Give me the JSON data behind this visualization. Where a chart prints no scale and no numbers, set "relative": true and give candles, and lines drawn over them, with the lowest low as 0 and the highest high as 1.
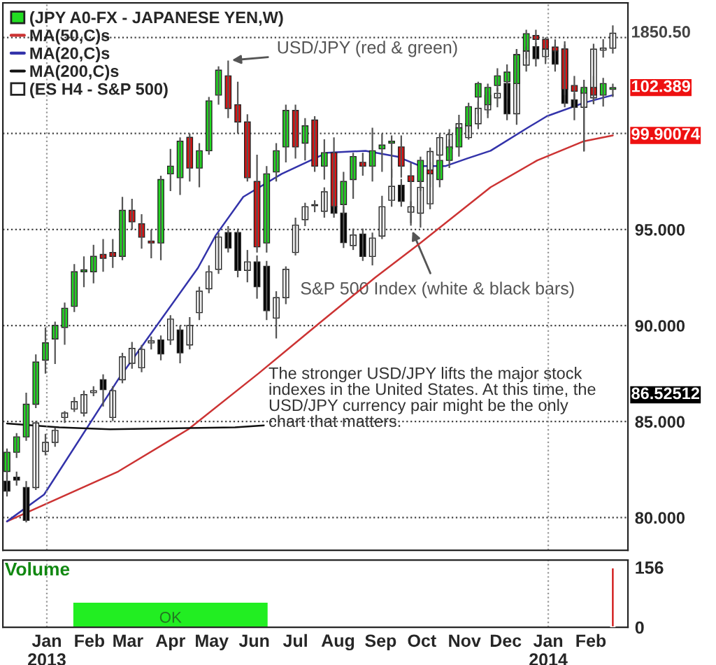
{
  "chart_data": [
    {
      "type": "candlestick",
      "legend": "top left",
      "grid": "y",
      "tick_labels": "y",
      "x": [
        "2012-12-03",
        "2012-12-10",
        "2012-12-17",
        "2012-12-24",
        "2012-12-31",
        "2013-01-07",
        "2013-01-14",
        "2013-01-21",
        "2013-01-28",
        "2013-02-04",
        "2013-02-11",
        "2013-02-18",
        "2013-02-25",
        "2013-03-04",
        "2013-03-11",
        "2013-03-18",
        "2013-03-25",
        "2013-04-01",
        "2013-04-08",
        "2013-04-15",
        "2013-04-22",
        "2013-04-29",
        "2013-05-06",
        "2013-05-13",
        "2013-05-20",
        "2013-05-27",
        "2013-06-03",
        "2013-06-10",
        "2013-06-17",
        "2013-06-24",
        "2013-07-01",
        "2013-07-08",
        "2013-07-15",
        "2013-07-22",
        "2013-07-29",
        "2013-08-05",
        "2013-08-12",
        "2013-08-19",
        "2013-08-26",
        "2013-09-02",
        "2013-09-09",
        "2013-09-16",
        "2013-09-23",
        "2013-09-30",
        "2013-10-07",
        "2013-10-14",
        "2013-10-21",
        "2013-10-28",
        "2013-11-04",
        "2013-11-11",
        "2013-11-18",
        "2013-11-25",
        "2013-12-02",
        "2013-12-09",
        "2013-12-16",
        "2013-12-23",
        "2013-12-30",
        "2014-01-06",
        "2014-01-13",
        "2014-01-20",
        "2014-01-27",
        "2014-02-03",
        "2014-02-10",
        "2014-02-17"
      ],
      "series": [
        {
          "name": "(JPY A0-FX - JAPANESE YEN,W)",
          "type": "candlestick",
          "colors": [
            "#22dd22",
            "#22dd22",
            "#22dd22",
            "#22dd22",
            "#22dd22",
            "#22dd22",
            "#22dd22",
            "#22dd22",
            "#22dd22",
            "#22dd22",
            "#dd1111",
            "#dd1111",
            "#22dd22",
            "#dd1111",
            "#dd1111",
            "#dd1111",
            "#22dd22",
            "#22dd22",
            "#22dd22",
            "#dd1111",
            "#22dd22",
            "#22dd22",
            "#22dd22",
            "#dd1111",
            "#dd1111",
            "#dd1111",
            "#dd1111",
            "#22dd22",
            "#22dd22",
            "#22dd22",
            "#dd1111",
            "#22dd22",
            "#dd1111",
            "#22dd22",
            "#dd1111",
            "#22dd22",
            "#22dd22",
            "#dd1111",
            "#22dd22",
            "#22dd22",
            "#22dd22",
            "#dd1111",
            "#dd1111",
            "#22dd22",
            "#dd1111",
            "#22dd22",
            "#22dd22",
            "#22dd22",
            "#22dd22",
            "#22dd22",
            "#22dd22",
            "#22dd22",
            "#22dd22",
            "#22dd22",
            "#22dd22",
            "#dd1111",
            "#dd1111",
            "#dd1111",
            "#dd1111",
            "#dd1111",
            "#22dd22",
            "#dd1111",
            "#22dd22",
            "#22dd22"
          ],
          "ohlc": [
            [
              82.4,
              83.6,
              82.0,
              83.4
            ],
            [
              83.4,
              84.4,
              83.1,
              84.2
            ],
            [
              84.2,
              86.5,
              84.0,
              85.9
            ],
            [
              85.9,
              88.5,
              85.7,
              88.1
            ],
            [
              88.2,
              89.9,
              87.5,
              89.1
            ],
            [
              89.3,
              90.2,
              88.0,
              90.0
            ],
            [
              89.9,
              91.2,
              89.0,
              90.9
            ],
            [
              91.0,
              93.2,
              90.7,
              92.8
            ],
            [
              92.8,
              93.6,
              92.0,
              92.9
            ],
            [
              92.8,
              94.2,
              92.2,
              93.6
            ],
            [
              93.7,
              94.5,
              92.8,
              93.5
            ],
            [
              93.8,
              94.5,
              93.0,
              93.6
            ],
            [
              93.6,
              96.7,
              93.4,
              96.0
            ],
            [
              96.0,
              96.6,
              95.0,
              95.4
            ],
            [
              95.3,
              95.8,
              94.0,
              94.6
            ],
            [
              94.4,
              95.0,
              93.5,
              94.3
            ],
            [
              94.3,
              97.8,
              93.4,
              97.6
            ],
            [
              97.9,
              99.2,
              97.0,
              98.3
            ],
            [
              97.7,
              99.8,
              96.8,
              99.6
            ],
            [
              99.8,
              100.0,
              97.5,
              98.2
            ],
            [
              98.2,
              99.5,
              97.2,
              99.1
            ],
            [
              99.1,
              101.9,
              98.9,
              101.7
            ],
            [
              102.0,
              103.5,
              101.5,
              103.3
            ],
            [
              103.0,
              103.8,
              100.8,
              101.3
            ],
            [
              101.5,
              102.7,
              100.0,
              100.6
            ],
            [
              100.6,
              101.0,
              97.5,
              97.7
            ],
            [
              97.5,
              98.9,
              93.8,
              94.1
            ],
            [
              94.3,
              98.3,
              93.8,
              97.9
            ],
            [
              98.0,
              99.5,
              97.5,
              99.1
            ],
            [
              99.3,
              101.5,
              98.5,
              101.2
            ],
            [
              101.2,
              101.5,
              98.7,
              99.3
            ],
            [
              99.5,
              100.8,
              98.6,
              100.4
            ],
            [
              100.7,
              100.9,
              98.0,
              98.3
            ],
            [
              98.3,
              99.7,
              97.6,
              99.0
            ],
            [
              99.0,
              99.8,
              95.8,
              96.2
            ],
            [
              96.3,
              98.0,
              95.8,
              97.5
            ],
            [
              97.6,
              99.0,
              96.6,
              98.8
            ],
            [
              98.5,
              99.0,
              97.8,
              98.3
            ],
            [
              98.3,
              100.3,
              97.5,
              99.1
            ],
            [
              99.2,
              100.0,
              98.0,
              99.4
            ],
            [
              99.5,
              99.9,
              97.7,
              99.6
            ],
            [
              99.3,
              99.9,
              97.7,
              98.3
            ],
            [
              97.8,
              98.5,
              95.2,
              97.5
            ],
            [
              97.5,
              98.8,
              97.0,
              98.6
            ],
            [
              98.1,
              98.5,
              97.2,
              97.9
            ],
            [
              97.6,
              98.9,
              97.2,
              98.6
            ],
            [
              98.6,
              99.7,
              98.2,
              99.3
            ],
            [
              99.3,
              100.5,
              98.8,
              100.3
            ],
            [
              100.4,
              101.6,
              99.8,
              101.4
            ],
            [
              101.9,
              102.7,
              101.0,
              102.6
            ],
            [
              101.5,
              102.6,
              100.8,
              102.4
            ],
            [
              102.5,
              103.4,
              102.2,
              103.0
            ],
            [
              102.7,
              103.6,
              101.8,
              103.2
            ],
            [
              102.6,
              104.4,
              102.3,
              104.1
            ],
            [
              104.3,
              105.4,
              103.9,
              105.2
            ],
            [
              105.1,
              105.4,
              104.0,
              104.9
            ],
            [
              104.9,
              105.0,
              103.8,
              104.4
            ],
            [
              104.5,
              104.9,
              103.9,
              104.3
            ],
            [
              104.4,
              104.8,
              102.0,
              102.3
            ],
            [
              102.5,
              103.0,
              101.4,
              102.2
            ],
            [
              102.1,
              102.8,
              99.1,
              102.4
            ],
            [
              102.4,
              103.0,
              101.6,
              102.0
            ],
            [
              102.0,
              102.9,
              101.4,
              102.6
            ],
            [
              102.3,
              102.6,
              101.9,
              102.389
            ]
          ]
        },
        {
          "name": "MA(50,C)s",
          "type": "line",
          "color": "#cc3333",
          "x": [
            "2012-12-03",
            "2013-02-22",
            "2013-04-14",
            "2013-06-04",
            "2013-07-18",
            "2013-08-28",
            "2013-09-30",
            "2013-11-20",
            "2013-12-24",
            "2014-01-27",
            "2014-02-17"
          ],
          "values": [
            79.8,
            82.4,
            84.6,
            87.5,
            90.1,
            92.5,
            94.3,
            97.2,
            98.6,
            99.6,
            99.90074
          ]
        },
        {
          "name": "MA(20,C)s",
          "type": "line",
          "color": "#3333aa",
          "x": [
            "2012-12-03",
            "2012-12-30",
            "2013-02-22",
            "2013-04-21",
            "2013-05-04",
            "2013-05-24",
            "2013-06-21",
            "2013-07-24",
            "2013-08-21",
            "2013-09-13",
            "2013-09-30",
            "2013-10-18",
            "2013-11-03",
            "2013-11-20",
            "2013-12-17",
            "2013-12-31",
            "2014-01-27",
            "2014-02-17"
          ],
          "values": [
            79.8,
            81.2,
            87.2,
            93.0,
            94.7,
            96.7,
            97.9,
            99.0,
            99.1,
            98.8,
            98.3,
            98.3,
            98.7,
            99.1,
            100.3,
            100.9,
            101.6,
            102.0
          ]
        },
        {
          "name": "MA(200,C)s",
          "type": "line",
          "color": "#111111",
          "x": [
            "2012-12-03",
            "2013-01-10",
            "2013-02-16",
            "2013-05-18",
            "2013-06-08"
          ],
          "values": [
            84.9,
            84.7,
            84.6,
            84.7,
            84.8
          ]
        }
      ],
      "xlim": [
        "2012-11-30",
        "2014-02-28"
      ],
      "ylim": [
        78.3,
        106.8
      ],
      "yticks": [
        {
          "value": 80,
          "label": "80.000"
        },
        {
          "value": 85,
          "label": "85.000"
        },
        {
          "value": 90,
          "label": "90.000"
        },
        {
          "value": 95,
          "label": "95.000"
        },
        {
          "value": 100,
          "label": null
        },
        {
          "value": 105,
          "label": null
        }
      ],
      "ref_lines": [
        {
          "axis": "x",
          "value": "2013-01-01",
          "line_style": "dotted",
          "color": "#999999"
        },
        {
          "axis": "x",
          "value": "2014-01-01",
          "line_style": "dotted",
          "color": "#999999"
        }
      ],
      "annotations": [
        {
          "text": "USD/JPY (red & green)",
          "x": "2013-05-13",
          "y": 103.8
        },
        "The stronger USD/JPY lifts the major stock\nindexes in the United States. At this time, the\nUSD/JPY currency pair might be the only\nchart that matters.",
        {
          "text": "102.389",
          "x": "2014-02-17",
          "y": 102.389
        },
        {
          "text": "99.90074",
          "x": "2014-02-17",
          "y": 99.90074
        },
        "86.52512"
      ]
    },
    {
      "type": "candlestick",
      "relative": true,
      "legend": "top left",
      "tick_labels": false,
      "x": [
        "2012-12-03",
        "2012-12-10",
        "2012-12-17",
        "2012-12-24",
        "2012-12-31",
        "2013-01-07",
        "2013-01-14",
        "2013-01-21",
        "2013-01-28",
        "2013-02-04",
        "2013-02-11",
        "2013-02-18",
        "2013-02-25",
        "2013-03-04",
        "2013-03-11",
        "2013-03-18",
        "2013-03-25",
        "2013-04-01",
        "2013-04-08",
        "2013-04-15",
        "2013-04-22",
        "2013-04-29",
        "2013-05-06",
        "2013-05-13",
        "2013-05-20",
        "2013-05-27",
        "2013-06-03",
        "2013-06-10",
        "2013-06-17",
        "2013-06-24",
        "2013-07-01",
        "2013-07-08",
        "2013-07-15",
        "2013-07-22",
        "2013-07-29",
        "2013-08-05",
        "2013-08-12",
        "2013-08-19",
        "2013-08-26",
        "2013-09-02",
        "2013-09-09",
        "2013-09-16",
        "2013-09-23",
        "2013-09-30",
        "2013-10-07",
        "2013-10-14",
        "2013-10-21",
        "2013-10-28",
        "2013-11-04",
        "2013-11-11",
        "2013-11-18",
        "2013-11-25",
        "2013-12-02",
        "2013-12-09",
        "2013-12-16",
        "2013-12-23",
        "2013-12-30",
        "2014-01-06",
        "2014-01-13",
        "2014-01-20",
        "2014-01-27",
        "2014-02-03",
        "2014-02-10",
        "2014-02-17"
      ],
      "series": [
        {
          "name": "(ES H4 - S&P 500)",
          "type": "candlestick",
          "colors": [
            "#000000",
            "#000000",
            "#000000",
            "#ffffff",
            "#ffffff",
            "#ffffff",
            "#ffffff",
            "#ffffff",
            "#ffffff",
            "#ffffff",
            "#000000",
            "#ffffff",
            "#ffffff",
            "#ffffff",
            "#ffffff",
            "#ffffff",
            "#000000",
            "#ffffff",
            "#000000",
            "#ffffff",
            "#ffffff",
            "#ffffff",
            "#ffffff",
            "#000000",
            "#000000",
            "#ffffff",
            "#000000",
            "#000000",
            "#ffffff",
            "#ffffff",
            "#ffffff",
            "#ffffff",
            "#ffffff",
            "#ffffff",
            "#000000",
            "#000000",
            "#ffffff",
            "#000000",
            "#ffffff",
            "#ffffff",
            "#ffffff",
            "#000000",
            "#ffffff",
            "#ffffff",
            "#ffffff",
            "#ffffff",
            "#ffffff",
            "#ffffff",
            "#ffffff",
            "#ffffff",
            "#ffffff",
            "#ffffff",
            "#000000",
            "#ffffff",
            "#ffffff",
            "#000000",
            "#ffffff",
            "#000000",
            "#000000",
            "#000000",
            "#ffffff",
            "#ffffff",
            "#ffffff",
            "#ffffff"
          ],
          "ohlc": [
            [
              0.083,
              0.096,
              0.052,
              0.063
            ],
            [
              0.091,
              0.102,
              0.074,
              0.085
            ],
            [
              0.07,
              0.083,
              0,
              0.004
            ],
            [
              0.07,
              0.204,
              0.065,
              0.2
            ],
            [
              0.143,
              0.178,
              0.135,
              0.161
            ],
            [
              0.161,
              0.191,
              0.152,
              0.185
            ],
            [
              0.211,
              0.224,
              0.2,
              0.22
            ],
            [
              0.228,
              0.252,
              0.222,
              0.243
            ],
            [
              0.22,
              0.265,
              0.213,
              0.257
            ],
            [
              0.261,
              0.274,
              0.254,
              0.265
            ],
            [
              0.287,
              0.298,
              0.233,
              0.267
            ],
            [
              0.211,
              0.274,
              0.204,
              0.265
            ],
            [
              0.287,
              0.341,
              0.28,
              0.333
            ],
            [
              0.32,
              0.363,
              0.309,
              0.35
            ],
            [
              0.311,
              0.357,
              0.302,
              0.348
            ],
            [
              0.361,
              0.374,
              0.348,
              0.365
            ],
            [
              0.367,
              0.376,
              0.326,
              0.339
            ],
            [
              0.367,
              0.417,
              0.357,
              0.409
            ],
            [
              0.387,
              0.396,
              0.32,
              0.341
            ],
            [
              0.357,
              0.413,
              0.348,
              0.396
            ],
            [
              0.422,
              0.474,
              0.407,
              0.465
            ],
            [
              0.47,
              0.517,
              0.461,
              0.504
            ],
            [
              0.509,
              0.583,
              0.5,
              0.574
            ],
            [
              0.583,
              0.596,
              0.543,
              0.552
            ],
            [
              0.583,
              0.591,
              0.493,
              0.507
            ],
            [
              0.507,
              0.548,
              0.483,
              0.524
            ],
            [
              0.524,
              0.537,
              0.45,
              0.474
            ],
            [
              0.515,
              0.526,
              0.407,
              0.426
            ],
            [
              0.411,
              0.465,
              0.37,
              0.452
            ],
            [
              0.452,
              0.515,
              0.439,
              0.509
            ],
            [
              0.543,
              0.613,
              0.537,
              0.598
            ],
            [
              0.609,
              0.643,
              0.596,
              0.635
            ],
            [
              0.637,
              0.648,
              0.624,
              0.639
            ],
            [
              0.626,
              0.674,
              0.613,
              0.665
            ],
            [
              0.635,
              0.652,
              0.613,
              0.622
            ],
            [
              0.622,
              0.635,
              0.552,
              0.563
            ],
            [
              0.557,
              0.591,
              0.548,
              0.578
            ],
            [
              0.58,
              0.591,
              0.526,
              0.535
            ],
            [
              0.535,
              0.583,
              0.517,
              0.572
            ],
            [
              0.576,
              0.657,
              0.57,
              0.635
            ],
            [
              0.648,
              0.711,
              0.635,
              0.676
            ],
            [
              0.678,
              0.691,
              0.635,
              0.646
            ],
            [
              0.624,
              0.646,
              0.602,
              0.635
            ],
            [
              0.622,
              0.691,
              0.593,
              0.674
            ],
            [
              0.641,
              0.754,
              0.63,
              0.746
            ],
            [
              0.739,
              0.783,
              0.733,
              0.774
            ],
            [
              0.752,
              0.791,
              0.743,
              0.78
            ],
            [
              0.78,
              0.82,
              0.765,
              0.802
            ],
            [
              0.774,
              0.809,
              0.77,
              0.802
            ],
            [
              0.802,
              0.846,
              0.791,
              0.833
            ],
            [
              0.83,
              0.867,
              0.822,
              0.859
            ],
            [
              0.854,
              0.874,
              0.835,
              0.863
            ],
            [
              0.883,
              0.9,
              0.809,
              0.822
            ],
            [
              0.822,
              0.952,
              0.8,
              0.941
            ],
            [
              0.92,
              0.957,
              0.907,
              0.948
            ],
            [
              0.957,
              0.965,
              0.917,
              0.933
            ],
            [
              0.937,
              0.961,
              0.922,
              0.952
            ],
            [
              0.948,
              0.961,
              0.907,
              0.922
            ],
            [
              0.952,
              0.961,
              0.835,
              0.843
            ],
            [
              0.85,
              0.863,
              0.809,
              0.835
            ],
            [
              0.835,
              0.878,
              0.746,
              0.87
            ],
            [
              0.854,
              0.963,
              0.841,
              0.952
            ],
            [
              0.95,
              0.972,
              0.935,
              0.954
            ],
            [
              0.954,
              1,
              0.943,
              0.984
            ]
          ]
        }
      ],
      "xlim": [
        "2012-11-30",
        "2014-02-28"
      ],
      "annotations": [
        {
          "text": "S&P 500 Index (white & black bars)",
          "x": "2013-09-23",
          "y": 0.593
        },
        {
          "text": "1850.50",
          "x": "2014-02-17",
          "y": 0.984
        }
      ]
    },
    {
      "type": "bar",
      "title": "Volume",
      "x": [
        "2014-02-17"
      ],
      "values": [
        156
      ],
      "color": "#cc0000",
      "xlim": [
        "2012-11-30",
        "2014-02-28"
      ],
      "xticks": [
        {
          "value": "2013-01-01",
          "label": "Jan\n2013"
        },
        {
          "value": "2013-02-01",
          "label": "Feb"
        },
        {
          "value": "2013-03-01",
          "label": "Mar"
        },
        {
          "value": "2013-04-01",
          "label": "Apr"
        },
        {
          "value": "2013-05-01",
          "label": "May"
        },
        {
          "value": "2013-06-01",
          "label": "Jun"
        },
        {
          "value": "2013-07-01",
          "label": "Jul"
        },
        {
          "value": "2013-08-01",
          "label": "Aug"
        },
        {
          "value": "2013-09-01",
          "label": "Sep"
        },
        {
          "value": "2013-10-01",
          "label": "Oct"
        },
        {
          "value": "2013-11-01",
          "label": "Nov"
        },
        {
          "value": "2013-12-01",
          "label": "Dec"
        },
        {
          "value": "2014-01-01",
          "label": "Jan\n2014"
        },
        {
          "value": "2014-02-01",
          "label": "Feb"
        }
      ],
      "ylim": [
        0,
        175
      ],
      "yticks": [
        0,
        156
      ],
      "ref_lines": [
        {
          "axis": "x",
          "value": "2013-01-01",
          "line_style": "dotted",
          "color": "#999999"
        },
        {
          "axis": "x",
          "value": "2014-01-01",
          "line_style": "dotted",
          "color": "#999999"
        }
      ],
      "bands": [
        {
          "axis": "x",
          "from": "2013-01-21",
          "to": "2013-06-10",
          "label": "OK",
          "color": "#22ee22"
        }
      ]
    }
  ]
}
